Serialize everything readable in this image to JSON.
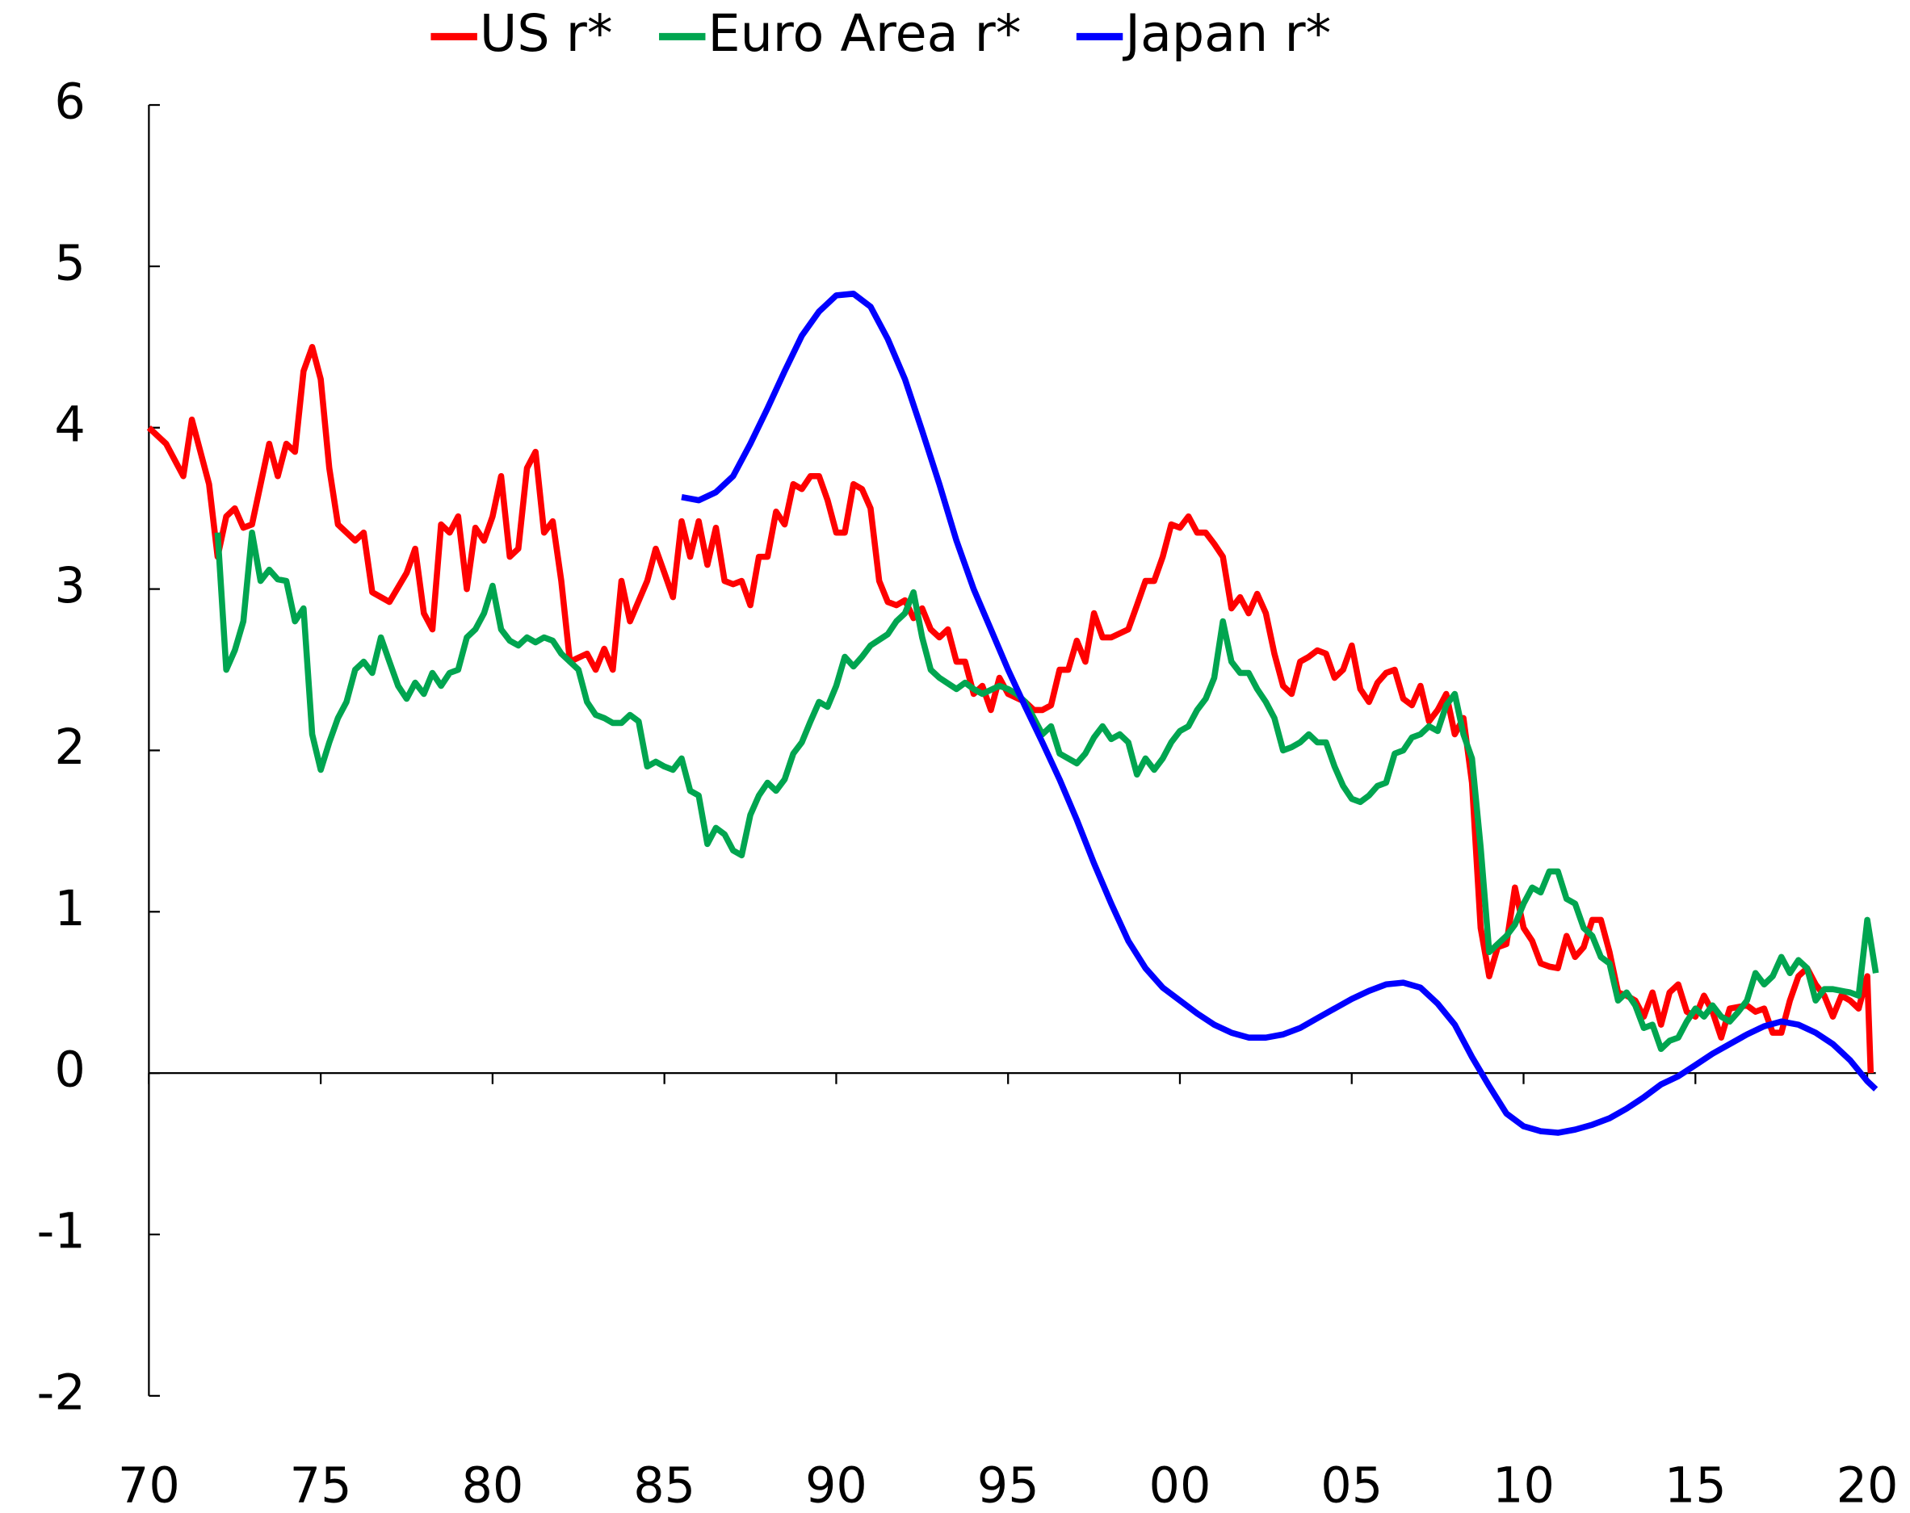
{
  "chart_data": {
    "type": "line",
    "xlim": [
      1970,
      2020.25
    ],
    "ylim": [
      -2,
      6
    ],
    "yticks": [
      -2,
      -1,
      0,
      1,
      2,
      3,
      4,
      5,
      6
    ],
    "xticks": [
      {
        "value": 1970,
        "label": "70"
      },
      {
        "value": 1975,
        "label": "75"
      },
      {
        "value": 1980,
        "label": "80"
      },
      {
        "value": 1985,
        "label": "85"
      },
      {
        "value": 1990,
        "label": "90"
      },
      {
        "value": 1995,
        "label": "95"
      },
      {
        "value": 2000,
        "label": "00"
      },
      {
        "value": 2005,
        "label": "05"
      },
      {
        "value": 2010,
        "label": "10"
      },
      {
        "value": 2015,
        "label": "15"
      },
      {
        "value": 2020,
        "label": "20"
      }
    ],
    "legend": "top",
    "series": [
      {
        "name": "US r*",
        "color": "#ff0000",
        "x": [
          1970,
          1970.5,
          1971,
          1971.25,
          1971.75,
          1972,
          1972.25,
          1972.5,
          1972.75,
          1973,
          1973.5,
          1973.75,
          1974,
          1974.25,
          1974.5,
          1974.75,
          1975,
          1975.25,
          1975.5,
          1976,
          1976.25,
          1976.5,
          1977,
          1977.5,
          1977.75,
          1978,
          1978.25,
          1978.5,
          1978.75,
          1979,
          1979.25,
          1979.5,
          1979.75,
          1980,
          1980.25,
          1980.5,
          1980.75,
          1981,
          1981.25,
          1981.5,
          1981.75,
          1982,
          1982.25,
          1982.75,
          1983,
          1983.25,
          1983.5,
          1983.75,
          1984,
          1984.5,
          1984.75,
          1985,
          1985.25,
          1985.5,
          1985.75,
          1986,
          1986.25,
          1986.5,
          1986.75,
          1987,
          1987.25,
          1987.5,
          1987.75,
          1988,
          1988.25,
          1988.5,
          1988.75,
          1989,
          1989.25,
          1989.5,
          1989.75,
          1990,
          1990.25,
          1990.5,
          1990.75,
          1991,
          1991.25,
          1991.5,
          1991.75,
          1992,
          1992.25,
          1992.5,
          1992.75,
          1993,
          1993.25,
          1993.5,
          1993.75,
          1994,
          1994.25,
          1994.5,
          1994.75,
          1995,
          1995.5,
          1995.75,
          1996,
          1996.25,
          1996.5,
          1996.75,
          1997,
          1997.25,
          1997.5,
          1997.75,
          1998,
          1998.5,
          1998.75,
          1999,
          1999.25,
          1999.5,
          1999.75,
          2000,
          2000.25,
          2000.5,
          2000.75,
          2001,
          2001.25,
          2001.5,
          2001.75,
          2002,
          2002.25,
          2002.5,
          2002.75,
          2003,
          2003.25,
          2003.5,
          2003.75,
          2004,
          2004.25,
          2004.5,
          2004.75,
          2005,
          2005.25,
          2005.5,
          2005.75,
          2006,
          2006.25,
          2006.5,
          2006.75,
          2007,
          2007.25,
          2007.5,
          2007.75,
          2008,
          2008.25,
          2008.5,
          2008.75,
          2009,
          2009.25,
          2009.5,
          2009.75,
          2010,
          2010.25,
          2010.5,
          2010.75,
          2011,
          2011.25,
          2011.5,
          2011.75,
          2012,
          2012.25,
          2012.5,
          2012.75,
          2013,
          2013.25,
          2013.5,
          2013.75,
          2014,
          2014.25,
          2014.5,
          2014.75,
          2015,
          2015.25,
          2015.5,
          2015.75,
          2016,
          2016.5,
          2016.75,
          2017,
          2017.25,
          2017.5,
          2017.75,
          2018,
          2018.25,
          2018.5,
          2018.75,
          2019,
          2019.25,
          2019.5,
          2019.75,
          2020,
          2020.1
        ],
        "values": [
          4.0,
          3.9,
          3.7,
          4.05,
          3.65,
          3.2,
          3.45,
          3.5,
          3.38,
          3.4,
          3.9,
          3.7,
          3.9,
          3.85,
          4.35,
          4.5,
          4.3,
          3.75,
          3.4,
          3.3,
          3.35,
          2.98,
          2.92,
          3.1,
          3.25,
          2.85,
          2.75,
          3.4,
          3.35,
          3.45,
          3.0,
          3.38,
          3.3,
          3.45,
          3.7,
          3.2,
          3.25,
          3.75,
          3.85,
          3.35,
          3.42,
          3.05,
          2.55,
          2.6,
          2.5,
          2.63,
          2.5,
          3.05,
          2.8,
          3.05,
          3.25,
          3.1,
          2.95,
          3.42,
          3.2,
          3.42,
          3.15,
          3.38,
          3.05,
          3.03,
          3.05,
          2.9,
          3.2,
          3.2,
          3.48,
          3.4,
          3.65,
          3.62,
          3.7,
          3.7,
          3.55,
          3.35,
          3.35,
          3.65,
          3.62,
          3.5,
          3.05,
          2.92,
          2.9,
          2.93,
          2.82,
          2.88,
          2.75,
          2.7,
          2.75,
          2.55,
          2.55,
          2.35,
          2.4,
          2.25,
          2.45,
          2.35,
          2.3,
          2.25,
          2.25,
          2.28,
          2.5,
          2.5,
          2.68,
          2.55,
          2.85,
          2.7,
          2.7,
          2.75,
          2.9,
          3.05,
          3.05,
          3.2,
          3.4,
          3.38,
          3.45,
          3.35,
          3.35,
          3.28,
          3.2,
          2.88,
          2.95,
          2.85,
          2.97,
          2.85,
          2.6,
          2.4,
          2.35,
          2.55,
          2.58,
          2.62,
          2.6,
          2.45,
          2.5,
          2.65,
          2.38,
          2.3,
          2.42,
          2.48,
          2.5,
          2.32,
          2.28,
          2.4,
          2.18,
          2.25,
          2.35,
          2.1,
          2.2,
          1.8,
          0.9,
          0.6,
          0.78,
          0.8,
          1.15,
          0.9,
          0.82,
          0.68,
          0.66,
          0.65,
          0.85,
          0.72,
          0.78,
          0.95,
          0.95,
          0.75,
          0.5,
          0.48,
          0.45,
          0.35,
          0.5,
          0.3,
          0.5,
          0.55,
          0.38,
          0.35,
          0.48,
          0.38,
          0.22,
          0.4,
          0.42,
          0.38,
          0.4,
          0.25,
          0.25,
          0.45,
          0.6,
          0.65,
          0.55,
          0.48,
          0.35,
          0.48,
          0.45,
          0.4,
          0.6,
          0.0
        ]
      },
      {
        "name": "Euro Area r*",
        "color": "#00a550",
        "x": [
          1972,
          1972.25,
          1972.5,
          1972.75,
          1973,
          1973.25,
          1973.5,
          1973.75,
          1974,
          1974.25,
          1974.5,
          1974.75,
          1975,
          1975.25,
          1975.5,
          1975.75,
          1976,
          1976.25,
          1976.5,
          1976.75,
          1977,
          1977.25,
          1977.5,
          1977.75,
          1978,
          1978.25,
          1978.5,
          1978.75,
          1979,
          1979.25,
          1979.5,
          1979.75,
          1980,
          1980.25,
          1980.5,
          1980.75,
          1981,
          1981.25,
          1981.5,
          1981.75,
          1982,
          1982.25,
          1982.5,
          1982.75,
          1983,
          1983.25,
          1983.5,
          1983.75,
          1984,
          1984.25,
          1984.5,
          1984.75,
          1985,
          1985.25,
          1985.5,
          1985.75,
          1986,
          1986.25,
          1986.5,
          1986.75,
          1987,
          1987.25,
          1987.5,
          1987.75,
          1988,
          1988.25,
          1988.5,
          1988.75,
          1989,
          1989.25,
          1989.5,
          1989.75,
          1990,
          1990.25,
          1990.5,
          1990.75,
          1991,
          1991.5,
          1991.75,
          1992,
          1992.25,
          1992.5,
          1992.75,
          1993,
          1993.5,
          1993.75,
          1994,
          1994.25,
          1994.75,
          1995,
          1995.25,
          1995.5,
          1995.75,
          1996,
          1996.25,
          1996.5,
          1996.75,
          1997,
          1997.25,
          1997.5,
          1997.75,
          1998,
          1998.25,
          1998.5,
          1998.75,
          1999,
          1999.25,
          1999.5,
          1999.75,
          2000,
          2000.25,
          2000.5,
          2000.75,
          2001,
          2001.25,
          2001.5,
          2001.75,
          2002,
          2002.25,
          2002.5,
          2002.75,
          2003,
          2003.25,
          2003.5,
          2003.75,
          2004,
          2004.25,
          2004.5,
          2004.75,
          2005,
          2005.25,
          2005.5,
          2005.75,
          2006,
          2006.25,
          2006.5,
          2006.75,
          2007,
          2007.25,
          2007.5,
          2007.75,
          2008,
          2008.25,
          2008.5,
          2008.75,
          2009,
          2009.25,
          2009.5,
          2009.75,
          2010,
          2010.25,
          2010.5,
          2010.75,
          2011,
          2011.25,
          2011.5,
          2011.75,
          2012,
          2012.25,
          2012.5,
          2012.75,
          2013,
          2013.25,
          2013.5,
          2013.75,
          2014,
          2014.25,
          2014.5,
          2014.75,
          2015,
          2015.25,
          2015.5,
          2015.75,
          2016,
          2016.25,
          2016.5,
          2016.75,
          2017,
          2017.25,
          2017.5,
          2017.75,
          2018,
          2018.25,
          2018.5,
          2018.75,
          2019,
          2019.5,
          2019.75,
          2020,
          2020.25
        ],
        "values": [
          3.35,
          2.5,
          2.62,
          2.8,
          3.35,
          3.05,
          3.12,
          3.06,
          3.05,
          2.8,
          2.88,
          2.1,
          1.88,
          2.05,
          2.2,
          2.3,
          2.5,
          2.55,
          2.48,
          2.7,
          2.55,
          2.4,
          2.32,
          2.42,
          2.35,
          2.48,
          2.4,
          2.48,
          2.5,
          2.7,
          2.75,
          2.85,
          3.02,
          2.75,
          2.68,
          2.65,
          2.7,
          2.67,
          2.7,
          2.68,
          2.6,
          2.55,
          2.5,
          2.3,
          2.22,
          2.2,
          2.17,
          2.17,
          2.22,
          2.18,
          1.9,
          1.93,
          1.9,
          1.88,
          1.95,
          1.75,
          1.72,
          1.42,
          1.52,
          1.48,
          1.38,
          1.35,
          1.6,
          1.72,
          1.8,
          1.75,
          1.82,
          1.98,
          2.05,
          2.18,
          2.3,
          2.27,
          2.4,
          2.58,
          2.52,
          2.58,
          2.65,
          2.72,
          2.8,
          2.85,
          2.98,
          2.7,
          2.5,
          2.45,
          2.38,
          2.42,
          2.38,
          2.35,
          2.4,
          2.38,
          2.35,
          2.3,
          2.2,
          2.1,
          2.15,
          1.98,
          1.95,
          1.92,
          1.98,
          2.08,
          2.15,
          2.07,
          2.1,
          2.05,
          1.85,
          1.95,
          1.88,
          1.95,
          2.05,
          2.12,
          2.15,
          2.25,
          2.32,
          2.45,
          2.8,
          2.55,
          2.48,
          2.48,
          2.38,
          2.3,
          2.2,
          2.0,
          2.02,
          2.05,
          2.1,
          2.05,
          2.05,
          1.9,
          1.78,
          1.7,
          1.68,
          1.72,
          1.78,
          1.8,
          1.98,
          2.0,
          2.08,
          2.1,
          2.15,
          2.12,
          2.28,
          2.35,
          2.1,
          1.95,
          1.4,
          0.75,
          0.8,
          0.85,
          0.92,
          1.05,
          1.15,
          1.12,
          1.25,
          1.25,
          1.08,
          1.05,
          0.9,
          0.85,
          0.72,
          0.68,
          0.45,
          0.5,
          0.42,
          0.28,
          0.3,
          0.15,
          0.2,
          0.22,
          0.32,
          0.4,
          0.35,
          0.42,
          0.35,
          0.32,
          0.38,
          0.45,
          0.62,
          0.55,
          0.6,
          0.72,
          0.62,
          0.7,
          0.65,
          0.45,
          0.52,
          0.52,
          0.5,
          0.48,
          0.95,
          0.62
        ]
      },
      {
        "name": "Japan r*",
        "color": "#0000ff",
        "x": [
          1985.5,
          1986,
          1986.5,
          1987,
          1987.5,
          1988,
          1988.5,
          1989,
          1989.5,
          1990,
          1990.5,
          1991,
          1991.5,
          1992,
          1992.5,
          1993,
          1993.5,
          1994,
          1994.5,
          1995,
          1995.5,
          1996,
          1996.5,
          1997,
          1997.5,
          1998,
          1998.5,
          1999,
          1999.5,
          2000,
          2000.5,
          2001,
          2001.5,
          2002,
          2002.5,
          2003,
          2003.5,
          2004,
          2004.5,
          2005,
          2005.5,
          2006,
          2006.5,
          2007,
          2007.5,
          2008,
          2008.5,
          2009,
          2009.5,
          2010,
          2010.5,
          2011,
          2011.5,
          2012,
          2012.5,
          2013,
          2013.5,
          2014,
          2014.5,
          2015,
          2015.5,
          2016,
          2016.5,
          2017,
          2017.5,
          2018,
          2018.5,
          2019,
          2019.5,
          2020,
          2020.25
        ],
        "values": [
          3.57,
          3.55,
          3.6,
          3.7,
          3.9,
          4.12,
          4.35,
          4.57,
          4.72,
          4.82,
          4.83,
          4.75,
          4.55,
          4.3,
          3.98,
          3.65,
          3.3,
          3.0,
          2.75,
          2.5,
          2.27,
          2.05,
          1.82,
          1.57,
          1.3,
          1.05,
          0.82,
          0.65,
          0.53,
          0.45,
          0.37,
          0.3,
          0.25,
          0.22,
          0.22,
          0.24,
          0.28,
          0.34,
          0.4,
          0.46,
          0.51,
          0.55,
          0.56,
          0.53,
          0.43,
          0.3,
          0.1,
          -0.08,
          -0.25,
          -0.33,
          -0.36,
          -0.37,
          -0.35,
          -0.32,
          -0.28,
          -0.22,
          -0.15,
          -0.07,
          -0.02,
          0.05,
          0.12,
          0.18,
          0.24,
          0.29,
          0.32,
          0.3,
          0.25,
          0.18,
          0.08,
          -0.05,
          -0.1
        ]
      }
    ]
  }
}
